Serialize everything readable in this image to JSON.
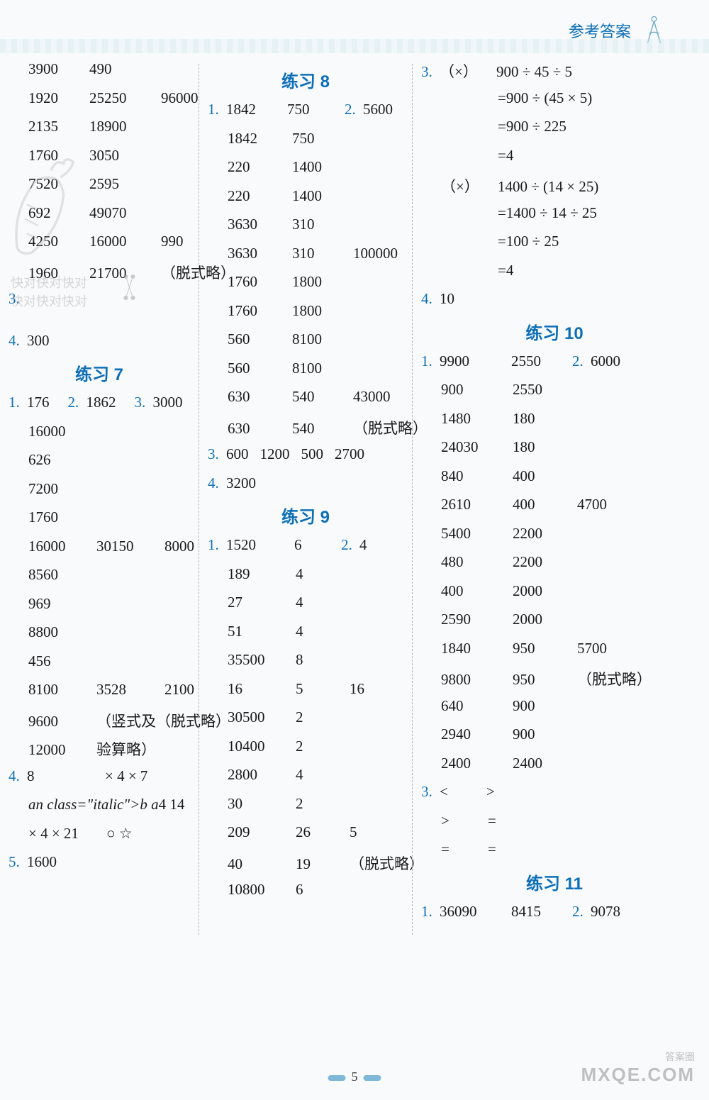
{
  "header": {
    "title": "参考答案"
  },
  "pageNumber": "5",
  "watermarks": {
    "mid_line1": "快对快对快对",
    "mid_line2": "快对快对快对",
    "bottom_small": "答案圈",
    "bottom_big": "MXQE.COM"
  },
  "col1": {
    "top_rows": [
      [
        "3900",
        "490"
      ],
      [
        "1920",
        "25250",
        "96000"
      ],
      [
        "2135",
        "18900"
      ],
      [
        "1760",
        "3050"
      ],
      [
        "7520",
        "2595"
      ],
      [
        "692",
        "49070"
      ],
      [
        "4250",
        "16000",
        "990"
      ],
      [
        "1960",
        "21700",
        "（脱式略）"
      ]
    ],
    "q3_label": "3.",
    "q4_label": "4.",
    "q4_val": "300",
    "title7": "练习 7",
    "r7": [
      {
        "q": "1.",
        "v": [
          "176"
        ],
        "inline": [
          "2.",
          "1862",
          "3.",
          "3000"
        ]
      },
      {
        "v": [
          "16000"
        ]
      },
      {
        "v": [
          "626"
        ]
      },
      {
        "v": [
          "7200"
        ]
      },
      {
        "v": [
          "1760"
        ]
      },
      {
        "v": [
          "16000",
          "30150",
          "8000"
        ]
      },
      {
        "v": [
          "8560"
        ]
      },
      {
        "v": [
          "969"
        ]
      },
      {
        "v": [
          "8800"
        ]
      },
      {
        "v": [
          "456"
        ]
      },
      {
        "v": [
          "8100",
          "3528",
          "2100"
        ]
      },
      {
        "v": [
          "9600",
          "（竖式及（脱式略）"
        ]
      },
      {
        "v": [
          "12000",
          "验算略）"
        ]
      }
    ],
    "q4b": {
      "label": "4.",
      "rows": [
        [
          "8",
          "",
          "×  4  ×  7"
        ],
        [
          "b   a",
          "",
          "4   14"
        ],
        [
          "×  4  ×  21",
          "",
          "○   ☆"
        ]
      ]
    },
    "q5": {
      "label": "5.",
      "val": "1600"
    }
  },
  "col2": {
    "title8": "练习 8",
    "r8": [
      {
        "q": "1.",
        "v": [
          "1842",
          "750"
        ],
        "inline": [
          "2.",
          "5600"
        ]
      },
      {
        "v": [
          "1842",
          "750"
        ]
      },
      {
        "v": [
          "220",
          "1400"
        ]
      },
      {
        "v": [
          "220",
          "1400"
        ]
      },
      {
        "v": [
          "3630",
          "310"
        ]
      },
      {
        "v": [
          "3630",
          "310",
          "100000"
        ]
      },
      {
        "v": [
          "1760",
          "1800"
        ]
      },
      {
        "v": [
          "1760",
          "1800"
        ]
      },
      {
        "v": [
          "560",
          "8100"
        ]
      },
      {
        "v": [
          "560",
          "8100"
        ]
      },
      {
        "v": [
          "630",
          "540",
          "43000"
        ]
      },
      {
        "v": [
          "630",
          "540",
          "（脱式略）"
        ]
      }
    ],
    "q83": {
      "label": "3.",
      "vals": [
        "600",
        "1200",
        "500",
        "2700"
      ]
    },
    "q84": {
      "label": "4.",
      "val": "3200"
    },
    "title9": "练习 9",
    "r9": [
      {
        "q": "1.",
        "v": [
          "1520",
          "6"
        ],
        "inline": [
          "2.",
          "4"
        ]
      },
      {
        "v": [
          "189",
          "4"
        ]
      },
      {
        "v": [
          "27",
          "4"
        ]
      },
      {
        "v": [
          "51",
          "4"
        ]
      },
      {
        "v": [
          "35500",
          "8"
        ]
      },
      {
        "v": [
          "16",
          "5",
          "16"
        ]
      },
      {
        "v": [
          "30500",
          "2"
        ]
      },
      {
        "v": [
          "10400",
          "2"
        ]
      },
      {
        "v": [
          "2800",
          "4"
        ]
      },
      {
        "v": [
          "30",
          "2"
        ]
      },
      {
        "v": [
          "209",
          "26",
          "5"
        ]
      },
      {
        "v": [
          "40",
          "19",
          "（脱式略）"
        ]
      },
      {
        "v": [
          "10800",
          "6"
        ]
      }
    ]
  },
  "col3": {
    "q3": {
      "label": "3.",
      "eq1": {
        "mark": "（×）",
        "lines": [
          "900 ÷ 45 ÷ 5",
          "=900 ÷ (45 × 5)",
          "=900 ÷ 225",
          "=4"
        ]
      },
      "eq2": {
        "mark": "（×）",
        "lines": [
          "1400 ÷ (14 × 25)",
          "=1400 ÷ 14 ÷ 25",
          "=100 ÷ 25",
          "=4"
        ]
      }
    },
    "q4": {
      "label": "4.",
      "val": "10"
    },
    "title10": "练习 10",
    "r10": [
      {
        "q": "1.",
        "v": [
          "9900",
          "2550"
        ],
        "inline": [
          "2.",
          "6000"
        ]
      },
      {
        "v": [
          "900",
          "2550"
        ]
      },
      {
        "v": [
          "1480",
          "180"
        ]
      },
      {
        "v": [
          "24030",
          "180"
        ]
      },
      {
        "v": [
          "840",
          "400"
        ]
      },
      {
        "v": [
          "2610",
          "400",
          "4700"
        ]
      },
      {
        "v": [
          "5400",
          "2200"
        ]
      },
      {
        "v": [
          "480",
          "2200"
        ]
      },
      {
        "v": [
          "400",
          "2000"
        ]
      },
      {
        "v": [
          "2590",
          "2000"
        ]
      },
      {
        "v": [
          "1840",
          "950",
          "5700"
        ]
      },
      {
        "v": [
          "9800",
          "950",
          "（脱式略）"
        ]
      },
      {
        "v": [
          "640",
          "900"
        ]
      },
      {
        "v": [
          "2940",
          "900"
        ]
      },
      {
        "v": [
          "2400",
          "2400"
        ]
      }
    ],
    "q103": {
      "label": "3.",
      "rows": [
        [
          "<",
          ">"
        ],
        [
          ">",
          "="
        ],
        [
          "=",
          "="
        ]
      ]
    },
    "title11": "练习 11",
    "r11": {
      "q": "1.",
      "v": [
        "36090",
        "8415"
      ],
      "inline": [
        "2.",
        "9078"
      ]
    }
  }
}
